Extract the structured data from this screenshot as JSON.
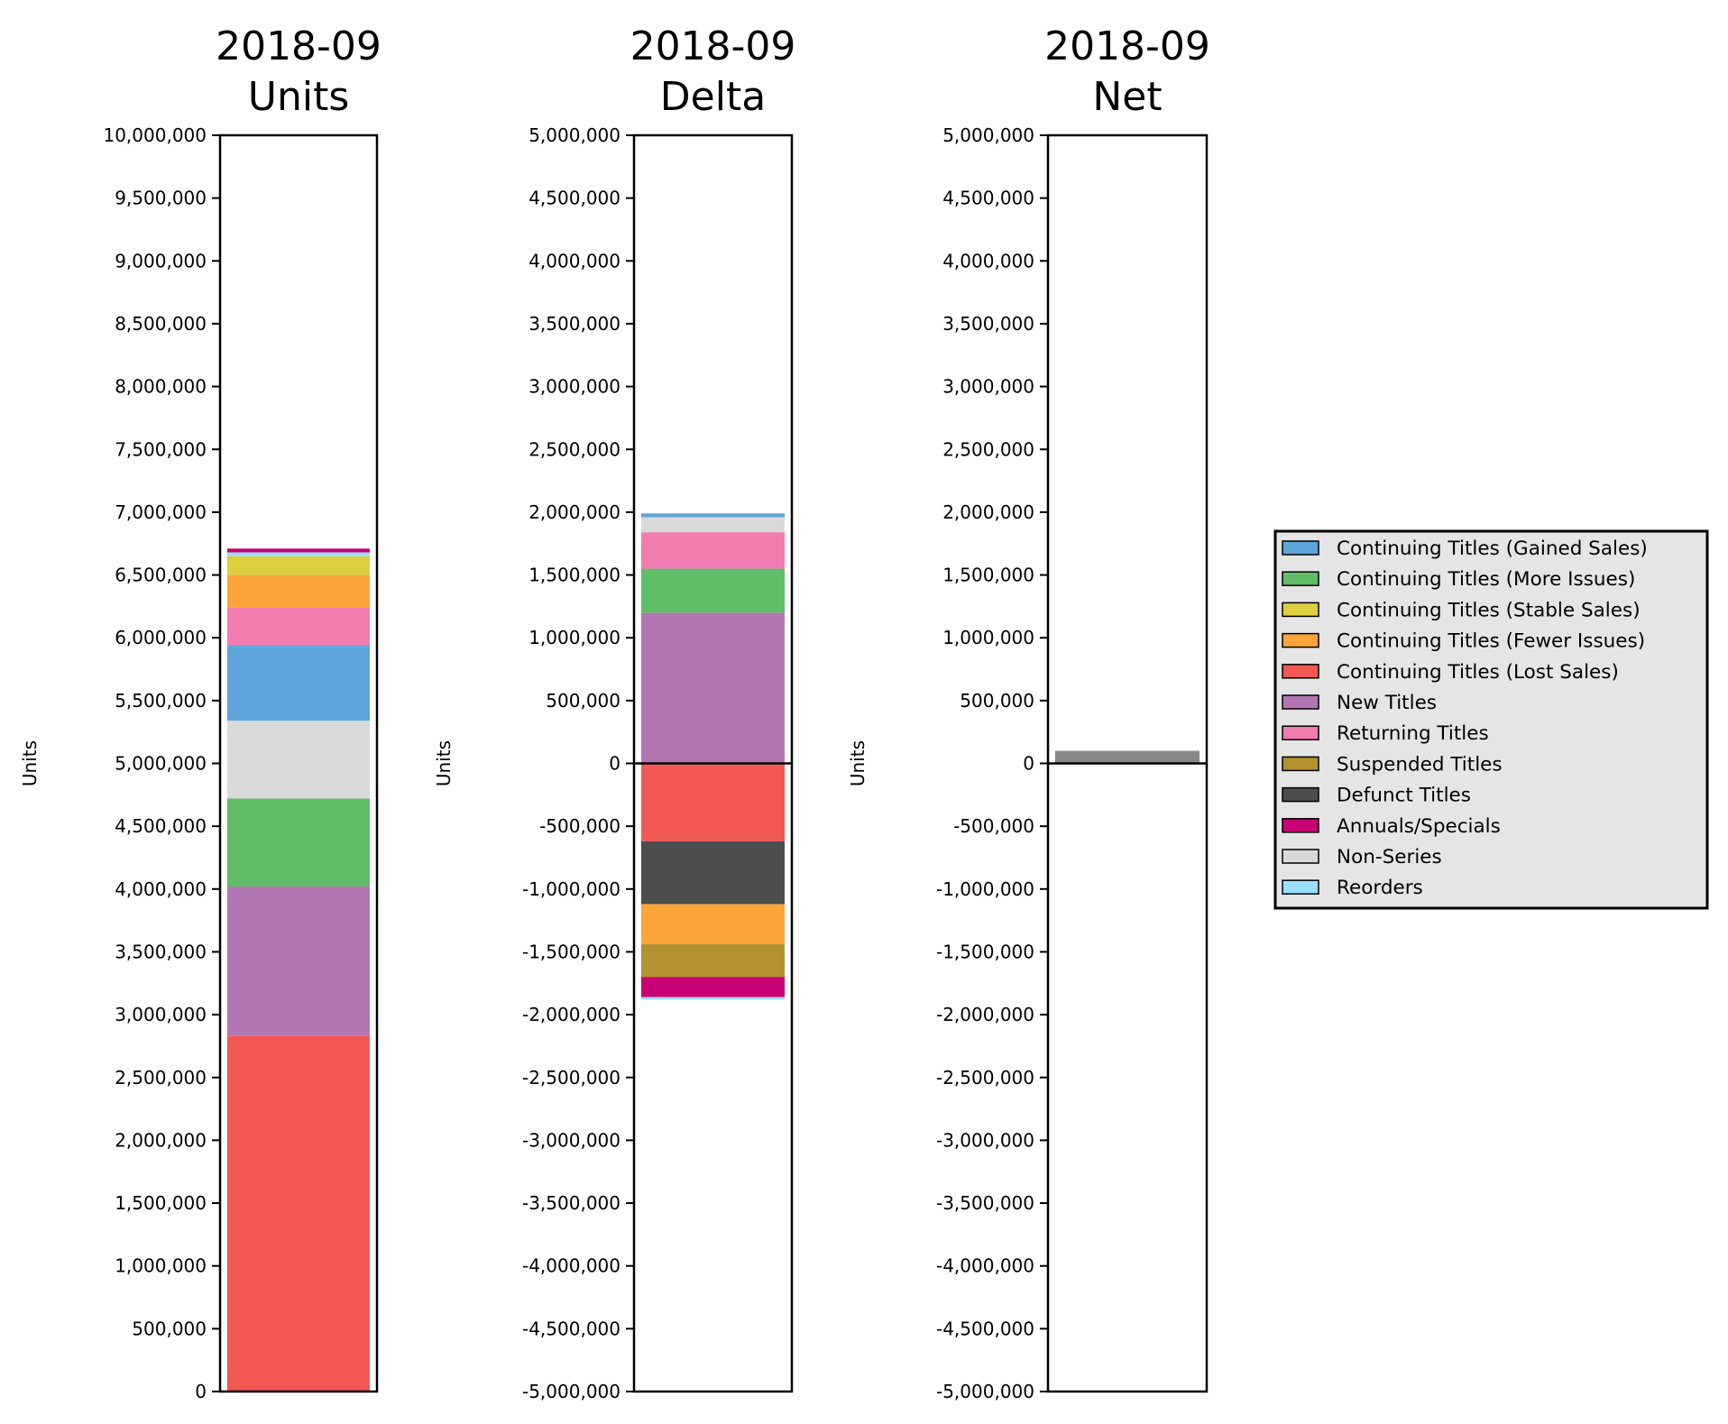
{
  "chart_data": [
    {
      "type": "bar",
      "stacked": true,
      "title_lines": [
        "2018-09",
        "Units"
      ],
      "ylabel": "Units",
      "ylim": [
        0,
        10000000
      ],
      "ytick_step": 500000,
      "segments": [
        {
          "name": "Continuing Titles (Lost Sales)",
          "from": 0,
          "to": 2830000
        },
        {
          "name": "New Titles",
          "from": 2830000,
          "to": 4020000
        },
        {
          "name": "Continuing Titles (More Issues)",
          "from": 4020000,
          "to": 4720000
        },
        {
          "name": "Non-Series",
          "from": 4720000,
          "to": 5340000
        },
        {
          "name": "Continuing Titles (Gained Sales)",
          "from": 5340000,
          "to": 5940000
        },
        {
          "name": "Returning Titles",
          "from": 5940000,
          "to": 6240000
        },
        {
          "name": "Continuing Titles (Fewer Issues)",
          "from": 6240000,
          "to": 6500000
        },
        {
          "name": "Continuing Titles (Stable Sales)",
          "from": 6500000,
          "to": 6650000
        },
        {
          "name": "Reorders",
          "from": 6650000,
          "to": 6680000
        },
        {
          "name": "Annuals/Specials",
          "from": 6680000,
          "to": 6710000
        }
      ]
    },
    {
      "type": "bar",
      "stacked": true,
      "title_lines": [
        "2018-09",
        "Delta"
      ],
      "ylabel": "Units",
      "ylim": [
        -5000000,
        5000000
      ],
      "ytick_step": 500000,
      "zero_line": true,
      "segments": [
        {
          "name": "New Titles",
          "from": 0,
          "to": 1200000
        },
        {
          "name": "Continuing Titles (More Issues)",
          "from": 1200000,
          "to": 1550000
        },
        {
          "name": "Returning Titles",
          "from": 1550000,
          "to": 1840000
        },
        {
          "name": "Non-Series",
          "from": 1840000,
          "to": 1960000
        },
        {
          "name": "Continuing Titles (Gained Sales)",
          "from": 1960000,
          "to": 1990000
        },
        {
          "name": "Continuing Titles (Lost Sales)",
          "from": 0,
          "to": -620000
        },
        {
          "name": "Defunct Titles",
          "from": -620000,
          "to": -1120000
        },
        {
          "name": "Continuing Titles (Fewer Issues)",
          "from": -1120000,
          "to": -1440000
        },
        {
          "name": "Suspended Titles",
          "from": -1440000,
          "to": -1700000
        },
        {
          "name": "Annuals/Specials",
          "from": -1700000,
          "to": -1860000
        },
        {
          "name": "Reorders",
          "from": -1860000,
          "to": -1880000
        }
      ]
    },
    {
      "type": "bar",
      "stacked": false,
      "title_lines": [
        "2018-09",
        "Net"
      ],
      "ylabel": "Units",
      "ylim": [
        -5000000,
        5000000
      ],
      "ytick_step": 500000,
      "zero_line": true,
      "segments": [
        {
          "name": "Net",
          "from": 0,
          "to": 100000
        }
      ]
    }
  ],
  "legend": {
    "placement": "right",
    "entries": [
      {
        "name": "Continuing Titles (Gained Sales)",
        "color": "#5DA5DA"
      },
      {
        "name": "Continuing Titles (More Issues)",
        "color": "#60BD68"
      },
      {
        "name": "Continuing Titles (Stable Sales)",
        "color": "#DECF3F"
      },
      {
        "name": "Continuing Titles (Fewer Issues)",
        "color": "#FAA43A"
      },
      {
        "name": "Continuing Titles (Lost Sales)",
        "color": "#F15854"
      },
      {
        "name": "New Titles",
        "color": "#B276B2"
      },
      {
        "name": "Returning Titles",
        "color": "#F17CB0"
      },
      {
        "name": "Suspended Titles",
        "color": "#B2912F"
      },
      {
        "name": "Defunct Titles",
        "color": "#4D4D4D"
      },
      {
        "name": "Annuals/Specials",
        "color": "#C90074"
      },
      {
        "name": "Non-Series",
        "color": "#D9D9D9"
      },
      {
        "name": "Reorders",
        "color": "#99DDFF"
      }
    ]
  },
  "colors": {
    "Continuing Titles (Gained Sales)": "#5DA5DA",
    "Continuing Titles (More Issues)": "#60BD68",
    "Continuing Titles (Stable Sales)": "#DECF3F",
    "Continuing Titles (Fewer Issues)": "#FAA43A",
    "Continuing Titles (Lost Sales)": "#F15854",
    "New Titles": "#B276B2",
    "Returning Titles": "#F17CB0",
    "Suspended Titles": "#B2912F",
    "Defunct Titles": "#4D4D4D",
    "Annuals/Specials": "#C90074",
    "Non-Series": "#D9D9D9",
    "Reorders": "#99DDFF",
    "Net": "#888888"
  }
}
